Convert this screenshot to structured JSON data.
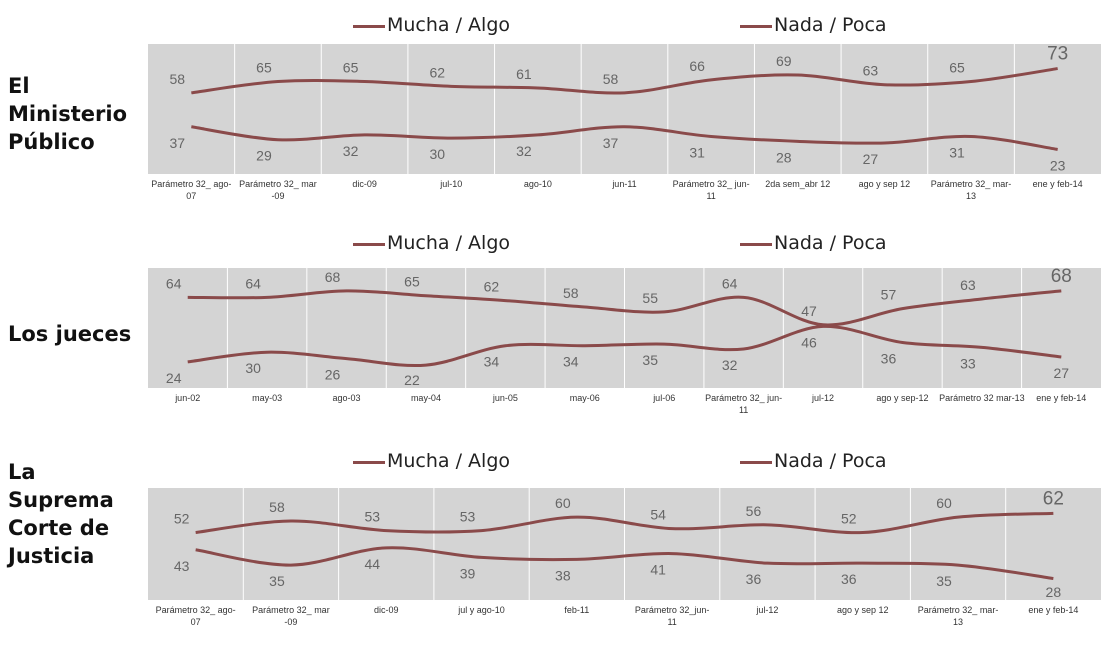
{
  "colors": {
    "plot_bg": "#d4d4d4",
    "line": "#8a4a4a",
    "grid": "#ffffff",
    "value_text": "#666666"
  },
  "chart_data": [
    {
      "type": "line",
      "title": "El Ministerio Público",
      "categories": [
        "Parámetro 32_ ago-07",
        "Parámetro 32_ mar -09",
        "dic-09",
        "jul-10",
        "ago-10",
        "jun-11",
        "Parámetro 32_ jun-11",
        "2da sem_abr 12",
        "ago y sep 12",
        "Parámetro 32_ mar-13",
        "ene y feb-14"
      ],
      "series": [
        {
          "name": "Mucha / Algo",
          "values": [
            58,
            65,
            65,
            62,
            61,
            58,
            66,
            69,
            63,
            65,
            73
          ]
        },
        {
          "name": "Nada / Poca",
          "values": [
            37,
            29,
            32,
            30,
            32,
            37,
            31,
            28,
            27,
            31,
            23
          ]
        }
      ],
      "legend": "top-center",
      "grid": true
    },
    {
      "type": "line",
      "title": "Los jueces",
      "categories": [
        "jun-02",
        "may-03",
        "ago-03",
        "may-04",
        "jun-05",
        "may-06",
        "jul-06",
        "Parámetro 32_ jun-11",
        "jul-12",
        "ago y sep-12",
        "Parámetro 32 mar-13",
        "ene y feb-14"
      ],
      "series": [
        {
          "name": "Mucha / Algo",
          "values": [
            64,
            64,
            68,
            65,
            62,
            58,
            55,
            64,
            47,
            57,
            63,
            68
          ]
        },
        {
          "name": "Nada / Poca",
          "values": [
            24,
            30,
            26,
            22,
            34,
            34,
            35,
            32,
            46,
            36,
            33,
            27
          ]
        }
      ],
      "legend": "top-center",
      "grid": true
    },
    {
      "type": "line",
      "title": "La Suprema Corte de Justicia",
      "categories": [
        "Parámetro 32_ ago-07",
        "Parámetro 32_ mar -09",
        "dic-09",
        "jul y ago-10",
        "feb-11",
        "Parámetro 32_jun- 11",
        "jul-12",
        "ago y sep 12",
        "Parámetro 32_ mar-13",
        "ene y feb-14"
      ],
      "series": [
        {
          "name": "Mucha / Algo",
          "values": [
            52,
            58,
            53,
            53,
            60,
            54,
            56,
            52,
            60,
            62
          ]
        },
        {
          "name": "Nada / Poca",
          "values": [
            43,
            35,
            44,
            39,
            38,
            41,
            36,
            36,
            35,
            28
          ]
        }
      ],
      "legend": "top-center",
      "grid": true
    }
  ]
}
